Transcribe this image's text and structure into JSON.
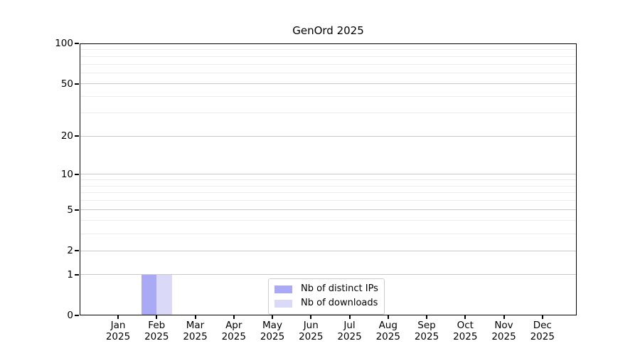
{
  "chart_data": {
    "type": "bar",
    "title": "GenOrd 2025",
    "categories": [
      "Jan 2025",
      "Feb 2025",
      "Mar 2025",
      "Apr 2025",
      "May 2025",
      "Jun 2025",
      "Jul 2025",
      "Aug 2025",
      "Sep 2025",
      "Oct 2025",
      "Nov 2025",
      "Dec 2025"
    ],
    "series": [
      {
        "name": "Nb of distinct IPs",
        "color": "#a9a9f5",
        "values": [
          0,
          1,
          0,
          0,
          0,
          0,
          0,
          0,
          0,
          0,
          0,
          0
        ]
      },
      {
        "name": "Nb of downloads",
        "color": "#dadaf8",
        "values": [
          0,
          1,
          0,
          0,
          0,
          0,
          0,
          0,
          0,
          0,
          0,
          0
        ]
      }
    ],
    "xlabel": "",
    "ylabel": "",
    "ylim": [
      0,
      100
    ],
    "yscale": "log1p",
    "yticks": [
      0,
      1,
      2,
      5,
      10,
      20,
      50,
      100
    ],
    "minor_yticks": [
      3,
      4,
      6,
      7,
      8,
      9,
      30,
      40,
      60,
      70,
      80,
      90
    ],
    "grid": "horizontal",
    "legend_position": "inside-bottom-center",
    "colors": {
      "grid_major": "#c9c9c9",
      "grid_minor": "#ececec",
      "spine": "#000000",
      "legend_border": "#cccccc",
      "text": "#000000"
    }
  }
}
